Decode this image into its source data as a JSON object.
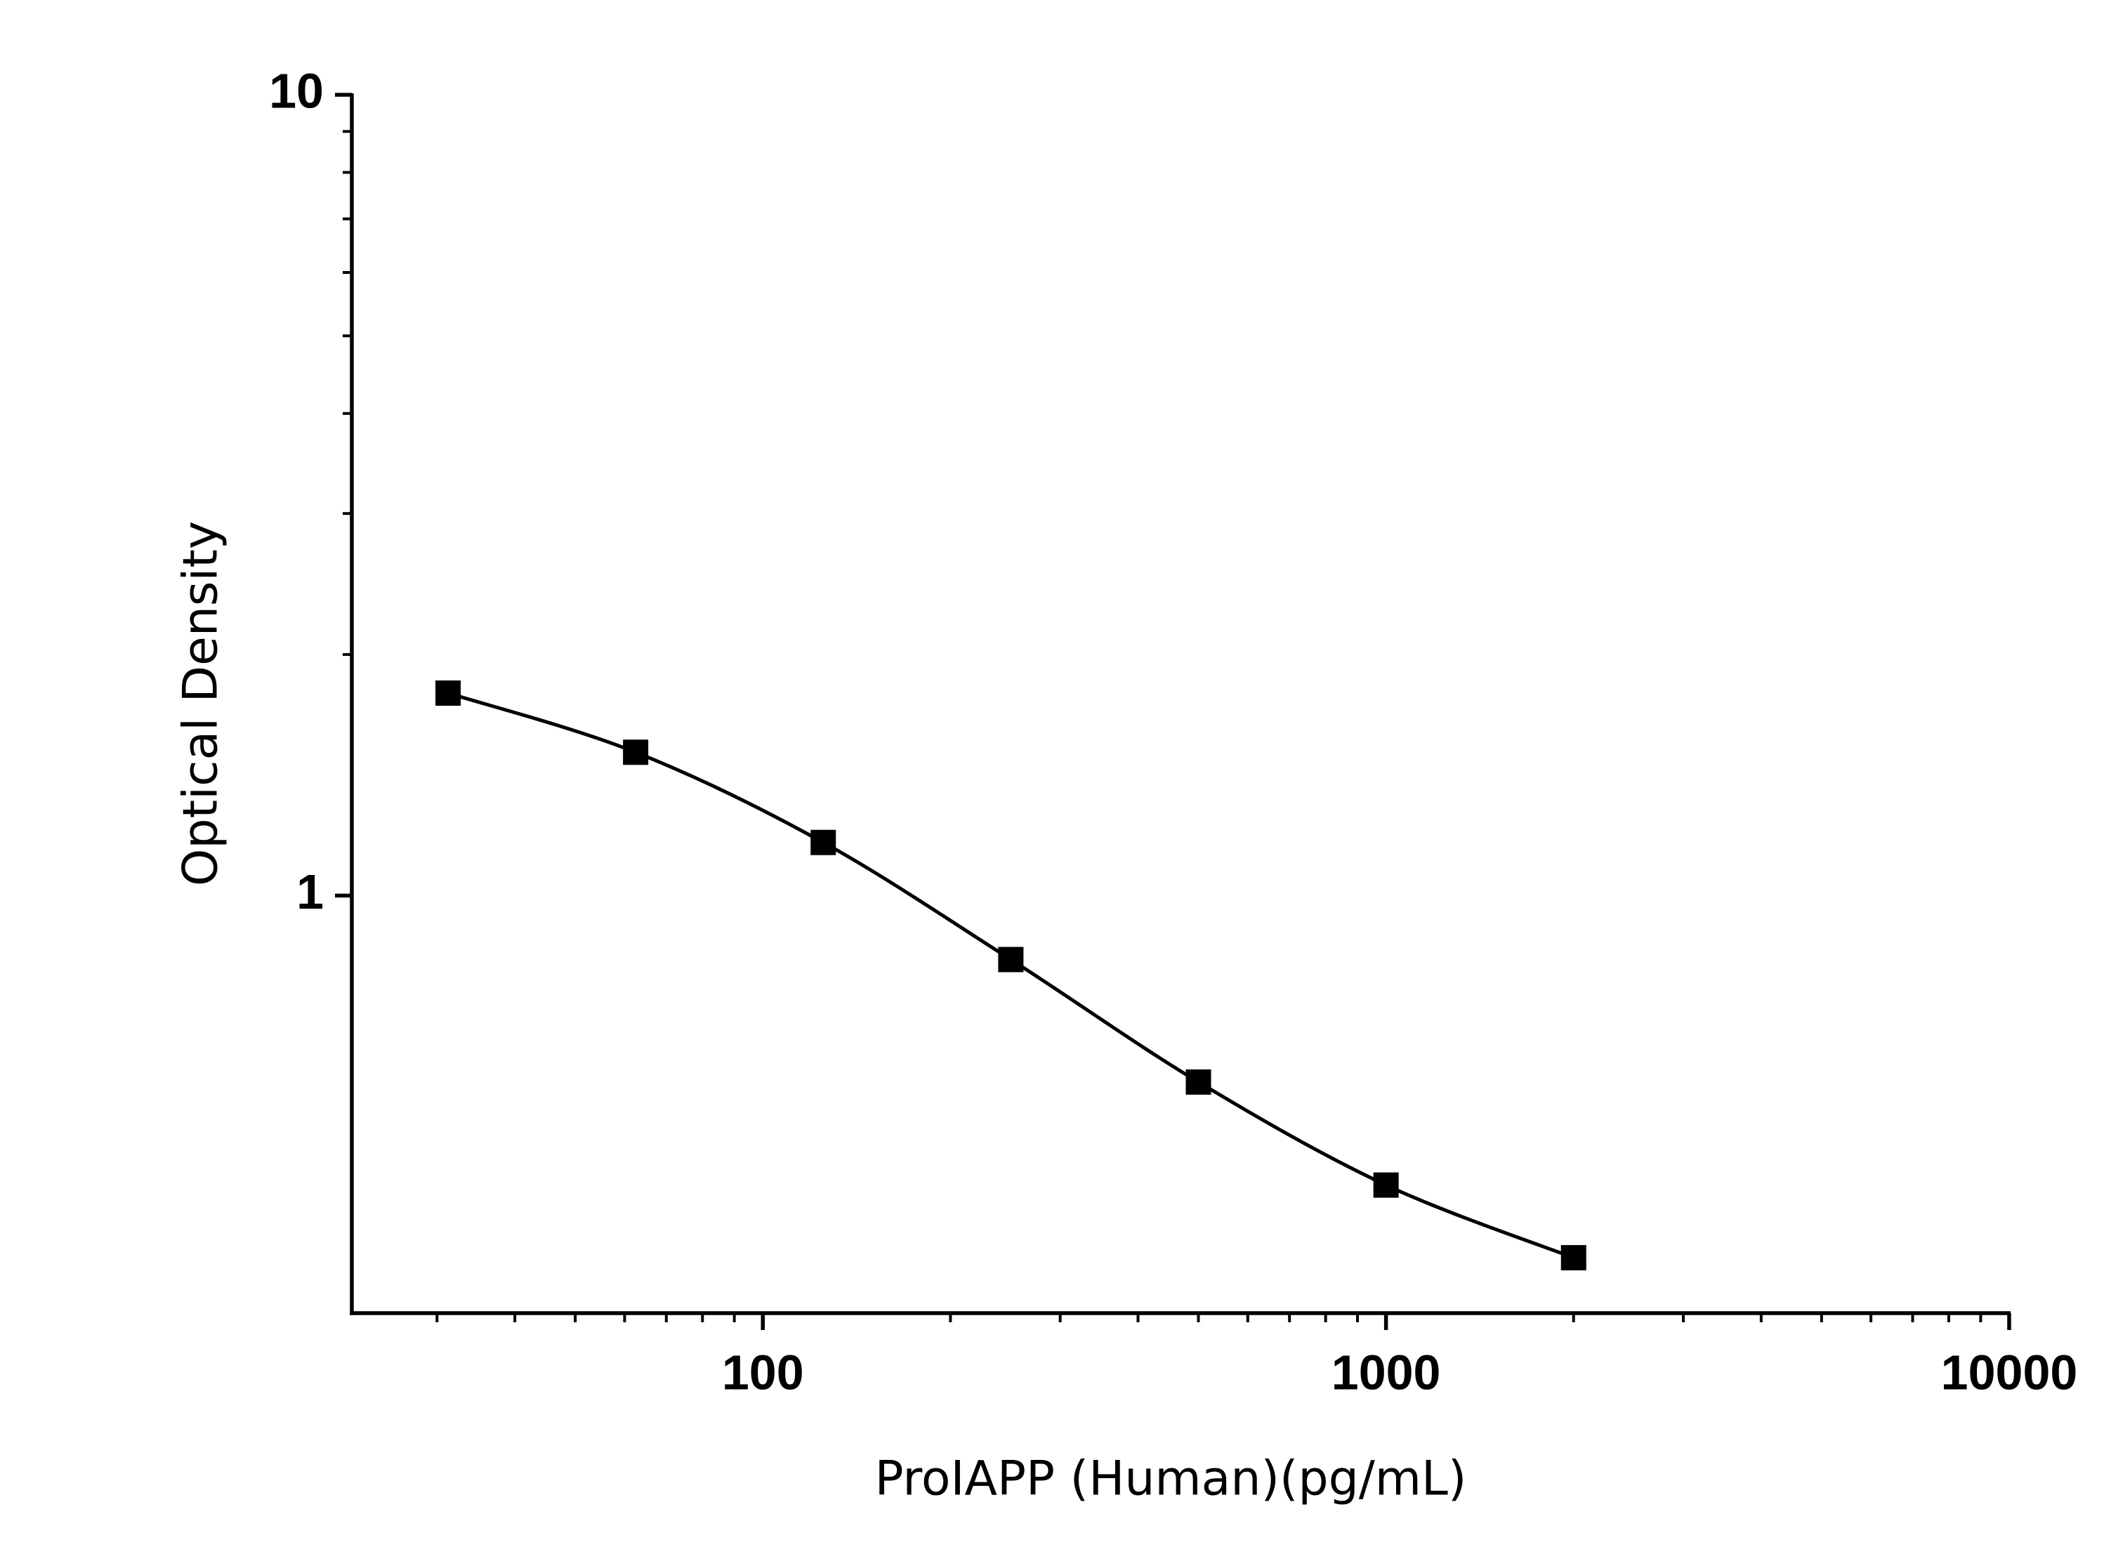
{
  "chart_data": {
    "type": "scatter",
    "x_label": "ProIAPP (Human)(pg/mL)",
    "y_label": "Optical Density",
    "x": [
      31.25,
      62.5,
      125,
      250,
      500,
      1000,
      2000
    ],
    "values": [
      1.79,
      1.51,
      1.165,
      0.832,
      0.585,
      0.435,
      0.353
    ],
    "color": "#000000",
    "fit_line": true,
    "x_log": true,
    "y_log": true,
    "xlim": [
      21.9,
      10000
    ],
    "xticks": [
      100,
      1000,
      10000
    ],
    "ylim": [
      0.301,
      10
    ],
    "yticks": [
      1,
      10
    ]
  }
}
